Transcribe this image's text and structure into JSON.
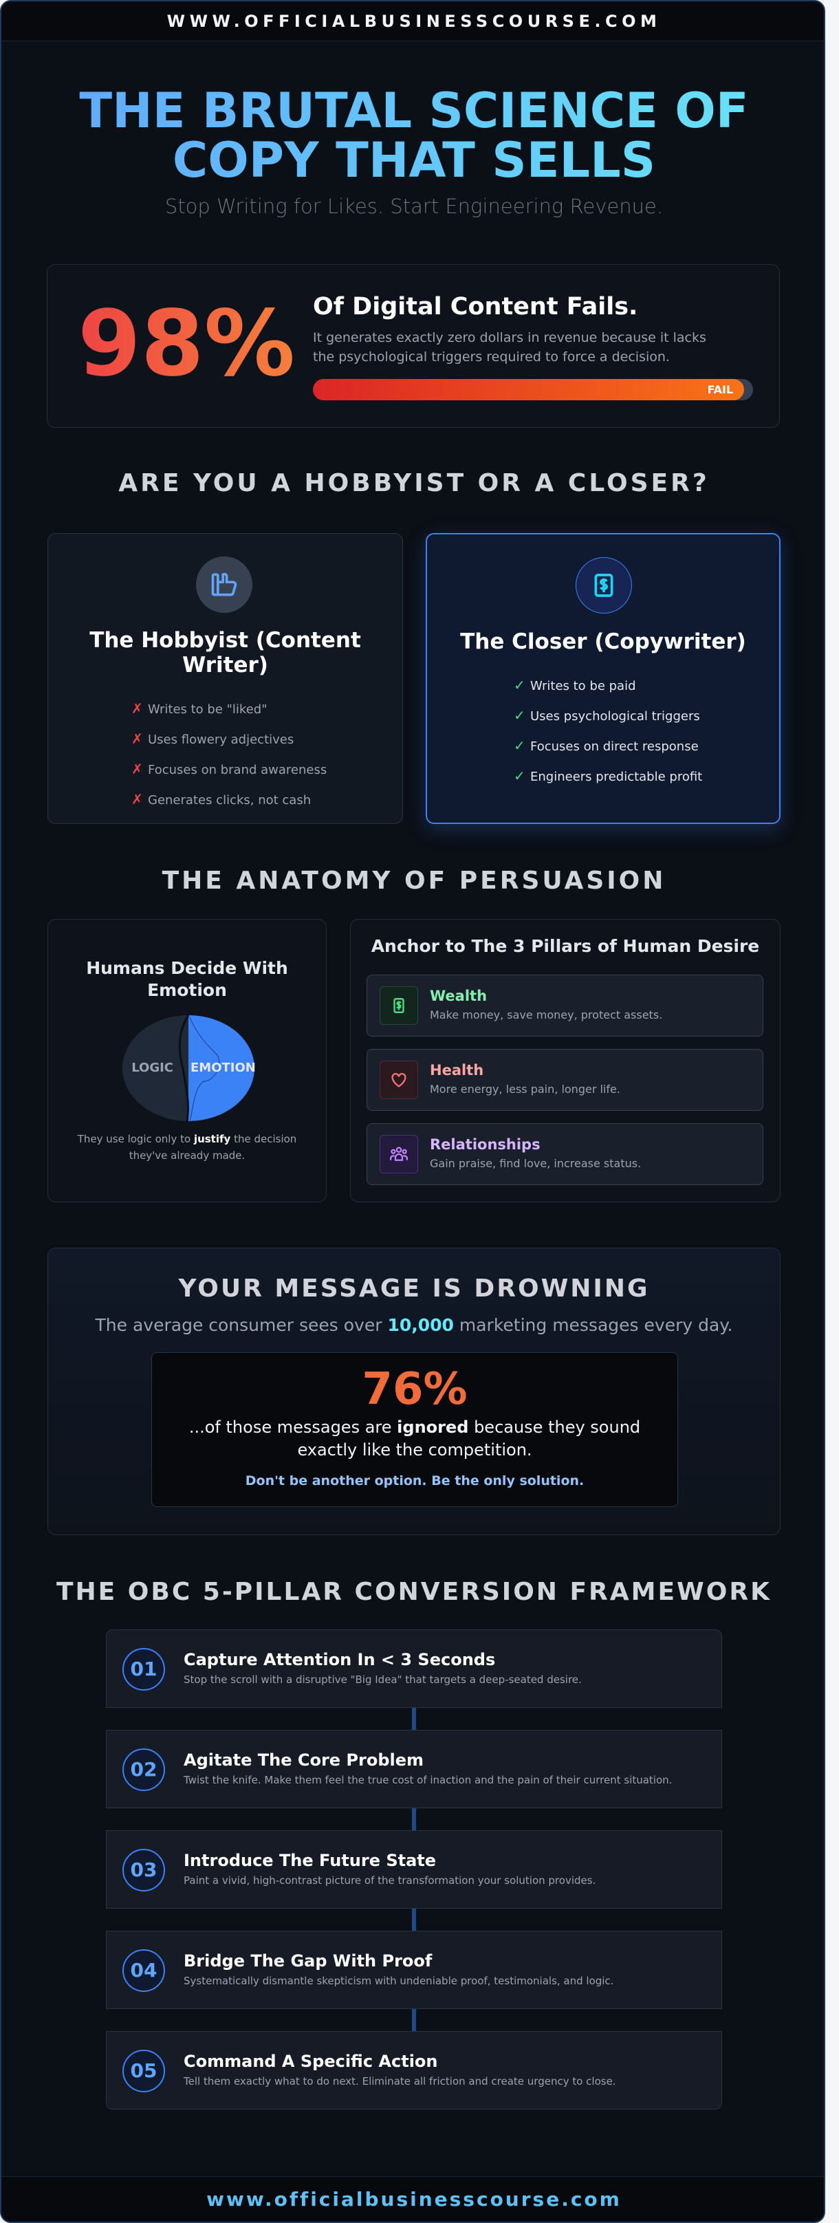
{
  "header": {
    "url": "WWW.OFFICIALBUSINESSCOURSE.COM"
  },
  "hero": {
    "title_line1": "THE BRUTAL SCIENCE OF",
    "title_line2": "COPY THAT SELLS",
    "subtitle": "Stop Writing for Likes. Start Engineering Revenue."
  },
  "stat": {
    "value": "98%",
    "title": "Of Digital Content Fails.",
    "desc_line1": "It generates exactly zero dollars in revenue because it lacks",
    "desc_line2": "the psychological triggers required to force a decision.",
    "bar_label": "FAIL",
    "bar_percent": 98,
    "colors": {
      "start": "#dc2626",
      "end": "#f97316"
    }
  },
  "comparison": {
    "heading": "ARE YOU A HOBBYIST OR A CLOSER?",
    "hobbyist": {
      "icon": "thumbs-up-icon",
      "title_line1": "The Hobbyist (Content",
      "title_line2": "Writer)",
      "marker": "✗",
      "items": [
        "Writes to be \"liked\"",
        "Uses flowery adjectives",
        "Focuses on brand awareness",
        "Generates clicks, not cash"
      ]
    },
    "closer": {
      "icon": "dollar-document-icon",
      "title": "The Closer (Copywriter)",
      "marker": "✓",
      "items": [
        "Writes to be paid",
        "Uses psychological triggers",
        "Focuses on direct response",
        "Engineers predictable profit"
      ]
    }
  },
  "anatomy": {
    "heading": "THE ANATOMY OF PERSUASION",
    "brain": {
      "title_line1": "Humans Decide With",
      "title_line2": "Emotion",
      "left_label": "LOGIC",
      "right_label": "EMOTION",
      "caption_pre": "They use logic only to ",
      "caption_bold": "justify",
      "caption_post": " the decision",
      "caption_line2": "they've already made."
    },
    "pillars": {
      "title": "Anchor to The 3 Pillars of Human Desire",
      "items": [
        {
          "name": "Wealth",
          "desc": "Make money, save money, protect assets.",
          "icon": "dollar-icon",
          "color": "#86efac"
        },
        {
          "name": "Health",
          "desc": "More energy, less pain, longer life.",
          "icon": "heart-icon",
          "color": "#fca5a5"
        },
        {
          "name": "Relationships",
          "desc": "Gain praise, find love, increase status.",
          "icon": "people-icon",
          "color": "#d8b4fe"
        }
      ]
    }
  },
  "drowning": {
    "heading": "YOUR MESSAGE IS DROWNING",
    "sub_pre": "The average consumer sees over ",
    "sub_num": "10,000",
    "sub_post": " marketing messages every day.",
    "stat": "76%",
    "line1_pre": "...of those messages are ",
    "line1_bold": "ignored",
    "line1_post": " because they sound",
    "line2": "exactly like the competition.",
    "cta": "Don't be another option. Be the only solution."
  },
  "framework": {
    "heading": "THE OBC 5-PILLAR CONVERSION FRAMEWORK",
    "steps": [
      {
        "num": "01",
        "title": "Capture Attention In < 3 Seconds",
        "desc": "Stop the scroll with a disruptive \"Big Idea\" that targets a deep-seated desire."
      },
      {
        "num": "02",
        "title": "Agitate The Core Problem",
        "desc": "Twist the knife. Make them feel the true cost of inaction and the pain of their current situation."
      },
      {
        "num": "03",
        "title": "Introduce The Future State",
        "desc": "Paint a vivid, high-contrast picture of the transformation your solution provides."
      },
      {
        "num": "04",
        "title": "Bridge The Gap With Proof",
        "desc": "Systematically dismantle skepticism with undeniable proof, testimonials, and logic."
      },
      {
        "num": "05",
        "title": "Command A Specific Action",
        "desc": "Tell them exactly what to do next. Eliminate all friction and create urgency to close."
      }
    ]
  },
  "footer": {
    "url": "www.officialbusinesscourse.com"
  }
}
